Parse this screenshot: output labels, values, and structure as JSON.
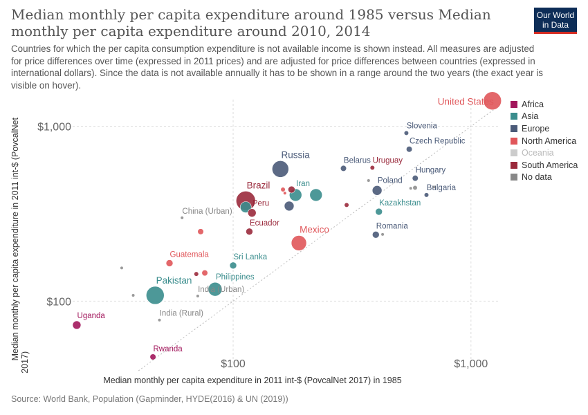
{
  "header": {
    "title": "Median monthly per capita expenditure around 1985 versus Median monthly per capita expenditure around 2010, 2014",
    "subtitle": "Countries for which the per capita consumption expenditure is not available income is shown instead. All measures are adjusted for price differences over time (expressed in 2011 prices) and are adjusted for price differences between countries (expressed in international dollars). Since the data is not available annually it has to be shown in a range around the two years (the exact year is visible on hover).",
    "logo_line1": "Our World",
    "logo_line2": "in Data"
  },
  "footer": {
    "source": "Source: World Bank, Population (Gapminder, HYDE(2016) & UN (2019))"
  },
  "legend": [
    {
      "name": "Africa",
      "color": "#a2175c"
    },
    {
      "name": "Asia",
      "color": "#3a8d8d"
    },
    {
      "name": "Europe",
      "color": "#4a5a78"
    },
    {
      "name": "North America",
      "color": "#e0565a"
    },
    {
      "name": "Oceania",
      "color": "#cccccc",
      "muted": true
    },
    {
      "name": "South America",
      "color": "#9a2a3c"
    },
    {
      "name": "No data",
      "color": "#888888"
    }
  ],
  "chart_data": {
    "type": "scatter",
    "xlabel": "Median monthly per capita expenditure in 2011 int-$ (PovcalNet 2017) in 1985",
    "ylabel": "Median monthly per capita expenditure in 2011 int-$ (PovcalNet 2017)",
    "x_scale": "log",
    "y_scale": "log",
    "xlim": [
      16.5,
      1300
    ],
    "ylim": [
      40,
      1530
    ],
    "x_ticks": [
      {
        "value": 100,
        "label": "$100"
      },
      {
        "value": 1000,
        "label": "$1,000"
      }
    ],
    "y_ticks": [
      {
        "value": 100,
        "label": "$100"
      },
      {
        "value": 1000,
        "label": "$1,000"
      }
    ],
    "diagonal_reference": true,
    "points": [
      {
        "label": "United States",
        "region": "North America",
        "x": 1230,
        "y": 1400,
        "size": 13,
        "labeled": true
      },
      {
        "label": "Slovenia",
        "region": "Europe",
        "x": 535,
        "y": 915,
        "size": 3,
        "labeled": true
      },
      {
        "label": "Czech Republic",
        "region": "Europe",
        "x": 550,
        "y": 740,
        "size": 4,
        "labeled": true
      },
      {
        "label": "Russia",
        "region": "Europe",
        "x": 158,
        "y": 570,
        "size": 12,
        "labeled": true
      },
      {
        "label": "Belarus",
        "region": "Europe",
        "x": 291,
        "y": 575,
        "size": 4,
        "labeled": true
      },
      {
        "label": "Uruguay",
        "region": "South America",
        "x": 385,
        "y": 580,
        "size": 3,
        "labeled": true
      },
      {
        "label": "Hungary",
        "region": "Europe",
        "x": 583,
        "y": 505,
        "size": 4,
        "labeled": true
      },
      {
        "label": "Poland",
        "region": "Europe",
        "x": 403,
        "y": 430,
        "size": 7,
        "labeled": true
      },
      {
        "label": "Bulgaria",
        "region": "Europe",
        "x": 650,
        "y": 405,
        "size": 3,
        "labeled": true
      },
      {
        "label": "Iran",
        "region": "Asia",
        "x": 183,
        "y": 405,
        "size": 9,
        "labeled": true
      },
      {
        "label": "Brazil",
        "region": "South America",
        "x": 113,
        "y": 375,
        "size": 14,
        "labeled": true
      },
      {
        "label": "Peru",
        "region": "South America",
        "x": 120,
        "y": 320,
        "size": 6,
        "labeled": true
      },
      {
        "label": "Kazakhstan",
        "region": "Asia",
        "x": 410,
        "y": 325,
        "size": 5,
        "labeled": true
      },
      {
        "label": "China (Urban)",
        "region": "No data",
        "x": 61,
        "y": 300,
        "size": 2,
        "labeled": true
      },
      {
        "label": "Ecuador",
        "region": "South America",
        "x": 117,
        "y": 250,
        "size": 5,
        "labeled": true
      },
      {
        "label": "Mexico",
        "region": "North America",
        "x": 189,
        "y": 215,
        "size": 11,
        "labeled": true
      },
      {
        "label": "Romania",
        "region": "Europe",
        "x": 398,
        "y": 240,
        "size": 5,
        "labeled": true
      },
      {
        "label": "Guatemala",
        "region": "North America",
        "x": 54,
        "y": 165,
        "size": 5,
        "labeled": true
      },
      {
        "label": "Sri Lanka",
        "region": "Asia",
        "x": 100,
        "y": 160,
        "size": 5,
        "labeled": true
      },
      {
        "label": "Philippines",
        "region": "Asia",
        "x": 84,
        "y": 117,
        "size": 10,
        "labeled": true
      },
      {
        "label": "Pakistan",
        "region": "Asia",
        "x": 47,
        "y": 108,
        "size": 13,
        "labeled": true
      },
      {
        "label": "India (Urban)",
        "region": "No data",
        "x": 71,
        "y": 107,
        "size": 2,
        "labeled": true
      },
      {
        "label": "India (Rural)",
        "region": "No data",
        "x": 49,
        "y": 78,
        "size": 2,
        "labeled": true
      },
      {
        "label": "Uganda",
        "region": "Africa",
        "x": 22,
        "y": 73,
        "size": 6,
        "labeled": true
      },
      {
        "label": "Rwanda",
        "region": "Africa",
        "x": 46,
        "y": 48,
        "size": 4,
        "labeled": true
      },
      {
        "label": "",
        "region": "Asia",
        "x": 223,
        "y": 405,
        "size": 9
      },
      {
        "label": "",
        "region": "Asia",
        "x": 113,
        "y": 345,
        "size": 8
      },
      {
        "label": "",
        "region": "Europe",
        "x": 172,
        "y": 350,
        "size": 7
      },
      {
        "label": "",
        "region": "South America",
        "x": 176,
        "y": 435,
        "size": 5
      },
      {
        "label": "",
        "region": "North America",
        "x": 162,
        "y": 435,
        "size": 3
      },
      {
        "label": "",
        "region": "North America",
        "x": 165,
        "y": 415,
        "size": 2
      },
      {
        "label": "",
        "region": "South America",
        "x": 300,
        "y": 355,
        "size": 3
      },
      {
        "label": "",
        "region": "No data",
        "x": 371,
        "y": 490,
        "size": 2
      },
      {
        "label": "",
        "region": "No data",
        "x": 582,
        "y": 445,
        "size": 3
      },
      {
        "label": "",
        "region": "No data",
        "x": 558,
        "y": 442,
        "size": 2
      },
      {
        "label": "",
        "region": "No data",
        "x": 700,
        "y": 450,
        "size": 2
      },
      {
        "label": "",
        "region": "No data",
        "x": 425,
        "y": 241,
        "size": 2
      },
      {
        "label": "",
        "region": "North America",
        "x": 73,
        "y": 250,
        "size": 4
      },
      {
        "label": "",
        "region": "North America",
        "x": 76,
        "y": 145,
        "size": 4
      },
      {
        "label": "",
        "region": "South America",
        "x": 70,
        "y": 143,
        "size": 3
      },
      {
        "label": "",
        "region": "No data",
        "x": 34,
        "y": 155,
        "size": 2
      },
      {
        "label": "",
        "region": "No data",
        "x": 38,
        "y": 108,
        "size": 2
      }
    ]
  }
}
